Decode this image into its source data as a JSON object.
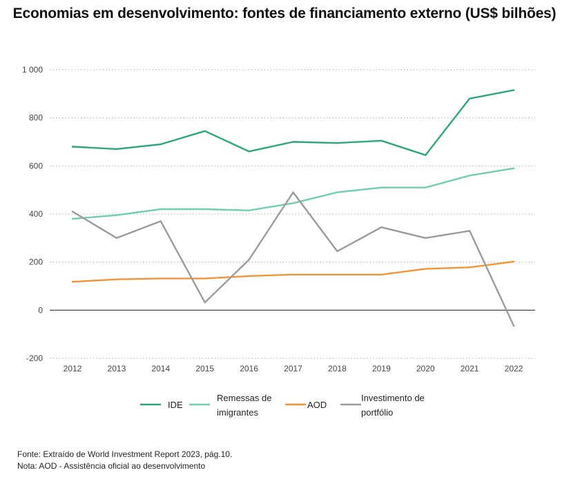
{
  "title": "Economias em desenvolvimento: fontes de financiamento externo (US$ bilhões)",
  "footer": {
    "source": "Fonte: Extraído de World Investment Report 2023, pág.10.",
    "note": "Nota: AOD - Assistência oficial ao desenvolvimento"
  },
  "chart_data": {
    "type": "line",
    "title": "Economias em desenvolvimento: fontes de financiamento externo (US$ bilhões)",
    "xlabel": "",
    "ylabel": "",
    "ylim": [
      -200,
      1000
    ],
    "yticks": [
      -200,
      0,
      200,
      400,
      600,
      800,
      1000
    ],
    "ytick_labels": [
      "-200",
      "0",
      "200",
      "400",
      "600",
      "800",
      "1 000"
    ],
    "grid": "horizontal dotted",
    "legend_position": "bottom",
    "categories": [
      "2012",
      "2013",
      "2014",
      "2015",
      "2016",
      "2017",
      "2018",
      "2019",
      "2020",
      "2021",
      "2022"
    ],
    "series": [
      {
        "name": "IDE",
        "legend_lines": [
          "IDE"
        ],
        "color": "#2aa57e",
        "values": [
          680,
          670,
          690,
          745,
          660,
          700,
          695,
          705,
          645,
          880,
          915
        ]
      },
      {
        "name": "Remessas de imigrantes",
        "legend_lines": [
          "Remessas de",
          "imigrantes"
        ],
        "color": "#6fcdb4",
        "values": [
          380,
          395,
          420,
          420,
          415,
          445,
          490,
          510,
          510,
          560,
          590
        ]
      },
      {
        "name": "AOD",
        "legend_lines": [
          "AOD"
        ],
        "color": "#f29434",
        "values": [
          118,
          128,
          132,
          132,
          142,
          148,
          148,
          148,
          172,
          178,
          202
        ]
      },
      {
        "name": "Investimento de portfólio",
        "legend_lines": [
          "Investimento de",
          "portfólio"
        ],
        "color": "#9a9a9a",
        "values": [
          410,
          300,
          370,
          32,
          210,
          490,
          245,
          345,
          300,
          330,
          -65
        ]
      }
    ]
  }
}
